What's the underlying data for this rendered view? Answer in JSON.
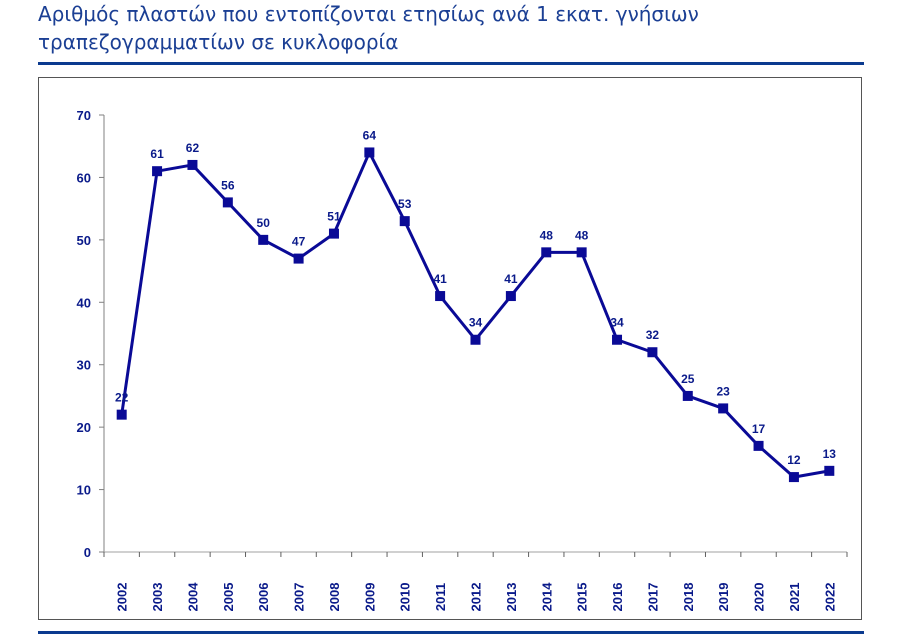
{
  "title": "Αριθμός πλαστών που εντοπίζονται ετησίως ανά 1 εκατ. γνήσιων τραπεζογραμματίων σε κυκλοφορία",
  "colors": {
    "line": "#0a0a96",
    "title": "#1b3f94",
    "rule": "#0b3a8f",
    "axis_text": "#0a1a8a"
  },
  "chart_data": {
    "type": "line",
    "title": "Αριθμός πλαστών που εντοπίζονται ετησίως ανά 1 εκατ. γνήσιων τραπεζογραμματίων σε κυκλοφορία",
    "xlabel": "",
    "ylabel": "",
    "categories": [
      "2002",
      "2003",
      "2004",
      "2005",
      "2006",
      "2007",
      "2008",
      "2009",
      "2010",
      "2011",
      "2012",
      "2013",
      "2014",
      "2015",
      "2016",
      "2017",
      "2018",
      "2019",
      "2020",
      "2021",
      "2022"
    ],
    "values": [
      22,
      61,
      62,
      56,
      50,
      47,
      51,
      64,
      53,
      41,
      34,
      41,
      48,
      48,
      34,
      32,
      25,
      23,
      17,
      12,
      13
    ],
    "yticks": [
      0,
      10,
      20,
      30,
      40,
      50,
      60,
      70
    ],
    "ylim": [
      0,
      70
    ],
    "grid": false,
    "legend": null,
    "marker": "square",
    "data_labels": true
  }
}
